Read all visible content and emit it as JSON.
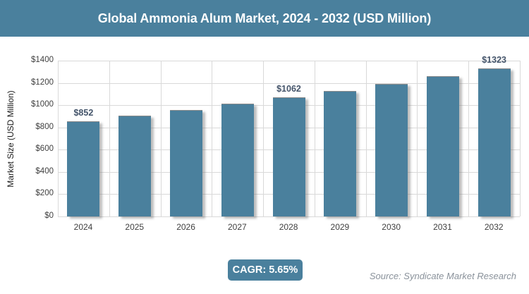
{
  "header": {
    "title": "Global Ammonia Alum Market, 2024 - 2032 (USD Million)"
  },
  "chart_data": {
    "type": "bar",
    "title": "Global Ammonia Alum Market, 2024 - 2032 (USD Million)",
    "categories": [
      "2024",
      "2025",
      "2026",
      "2027",
      "2028",
      "2029",
      "2030",
      "2031",
      "2032"
    ],
    "values": [
      852,
      900,
      951,
      1005,
      1062,
      1122,
      1185,
      1252,
      1323
    ],
    "bar_labels": [
      "$852",
      "",
      "",
      "",
      "$1062",
      "",
      "",
      "",
      "$1323"
    ],
    "xlabel": "",
    "ylabel": "Market Size (USD Million)",
    "ylim": [
      0,
      1400
    ],
    "ytick_step": 200,
    "yticks": [
      "$0",
      "$200",
      "$400",
      "$600",
      "$800",
      "$1000",
      "$1200",
      "$1400"
    ],
    "grid": true,
    "legend": false
  },
  "footer": {
    "cagr_label": "CAGR: 5.65%",
    "source": "Source: Syndicate Market Research"
  },
  "colors": {
    "accent": "#4A809D",
    "gridline": "#D9D9D9",
    "axis_text": "#3F3F3F",
    "value_label": "#44546A",
    "source_text": "#8A929B",
    "title_text": "#FFFFFF"
  }
}
